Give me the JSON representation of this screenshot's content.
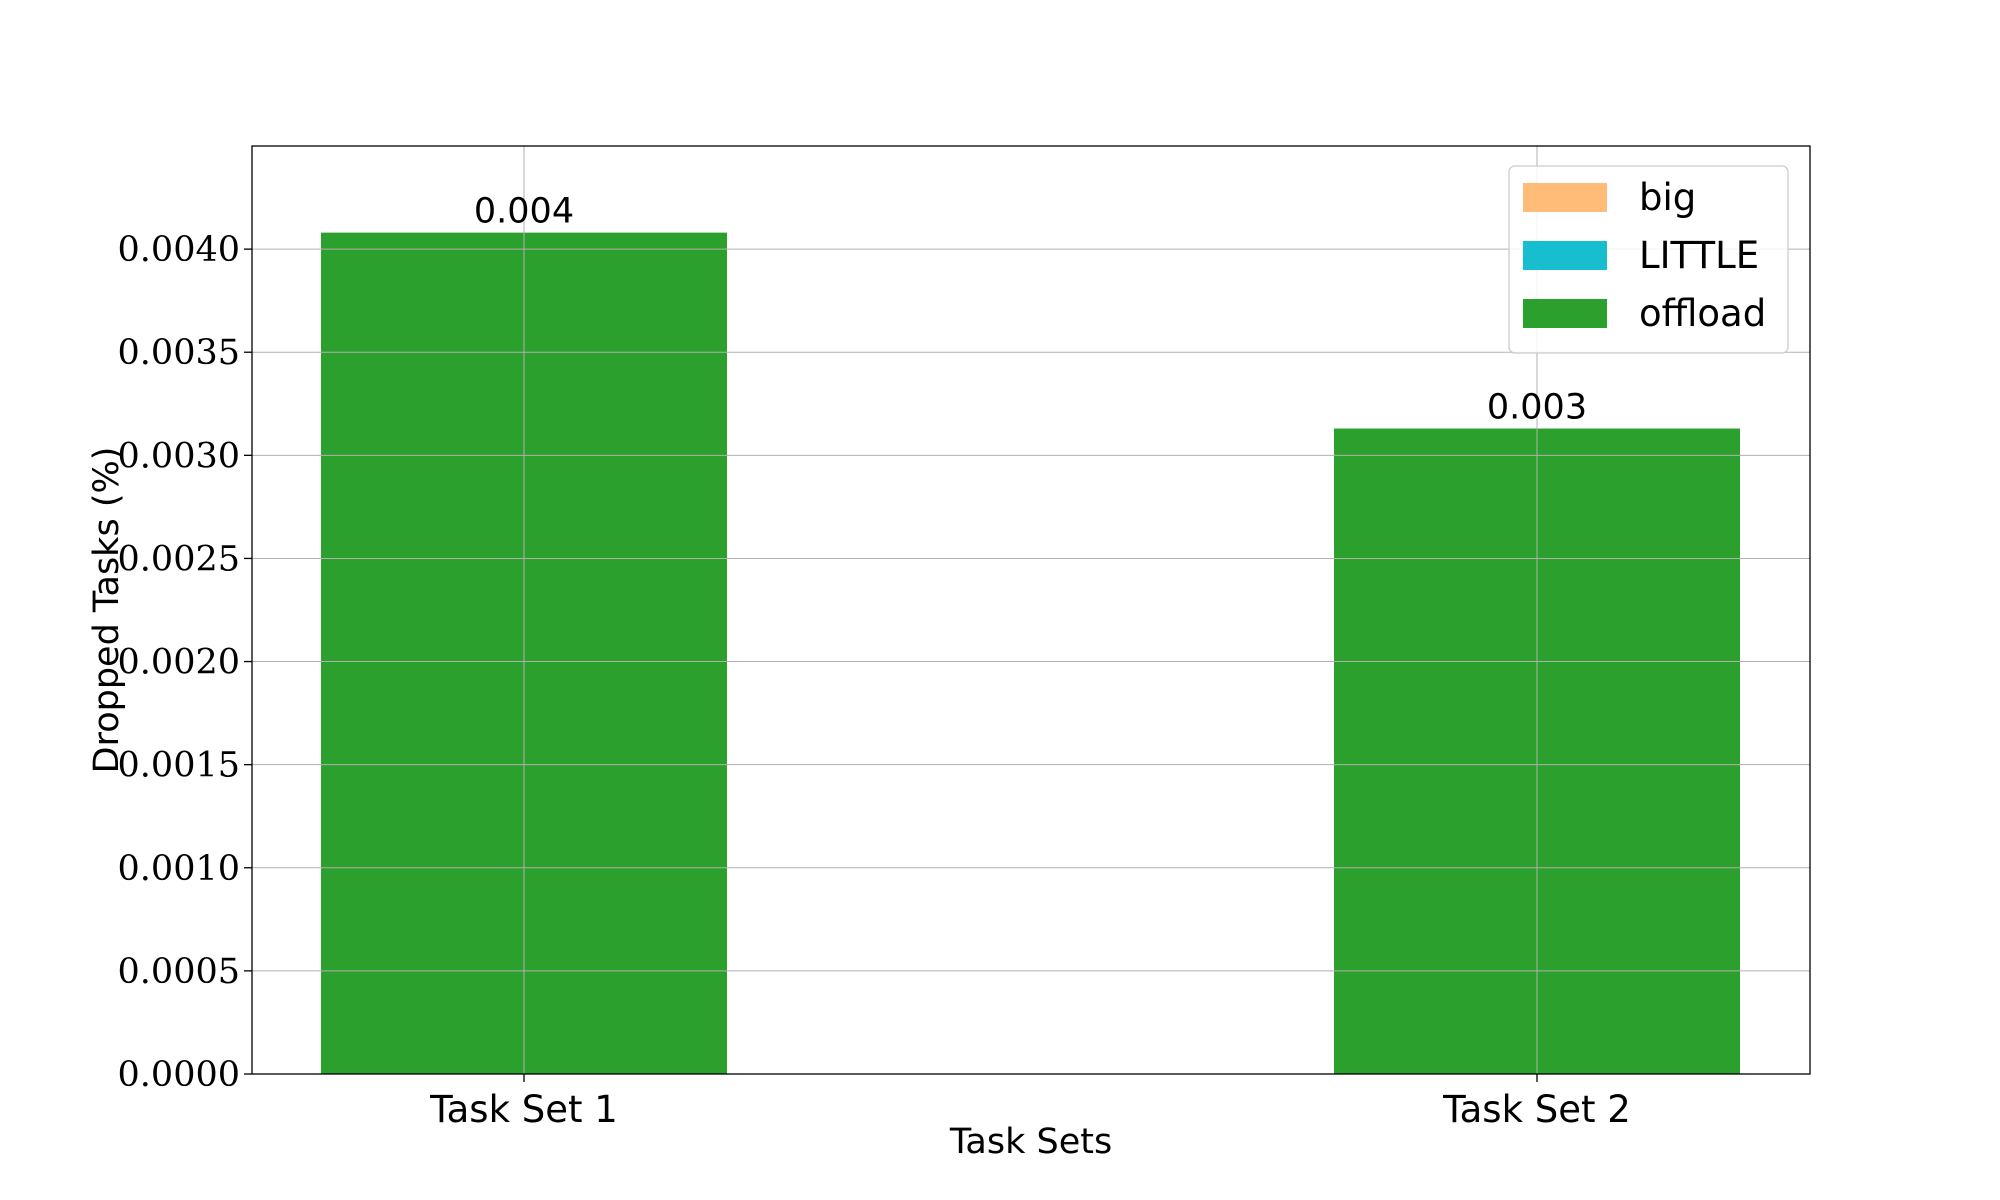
{
  "chart_data": {
    "type": "bar",
    "categories": [
      "Task Set 1",
      "Task Set 2"
    ],
    "series": [
      {
        "name": "big",
        "color": "#ffbb78",
        "values": [
          0,
          0
        ]
      },
      {
        "name": "LITTLE",
        "color": "#17becf",
        "values": [
          0,
          0
        ]
      },
      {
        "name": "offload",
        "color": "#2ca02c",
        "values": [
          0.00408,
          0.00313
        ]
      }
    ],
    "data_labels": [
      "0.004",
      "0.003"
    ],
    "xlabel": "Task Sets",
    "ylabel": "Dropped Tasks (%)",
    "ylim": [
      0,
      0.0045
    ],
    "yticks": [
      "0.0000",
      "0.0005",
      "0.0010",
      "0.0015",
      "0.0020",
      "0.0025",
      "0.0030",
      "0.0035",
      "0.0040"
    ],
    "grid": true,
    "legend_position": "top-right"
  }
}
